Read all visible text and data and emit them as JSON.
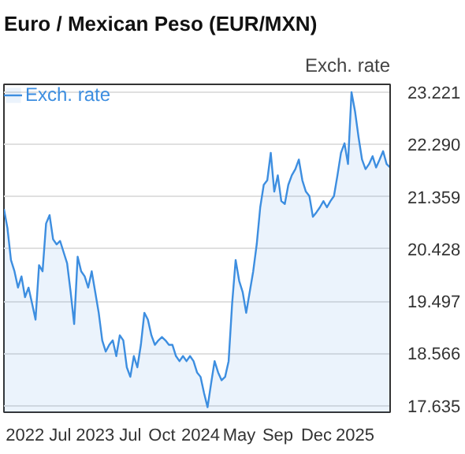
{
  "chart_data": {
    "type": "area",
    "title": "Euro / Mexican Peso (EUR/MXN)",
    "ylabel": "Exch. rate",
    "categories": [
      null,
      null,
      null,
      null,
      null,
      null,
      "2022",
      null,
      null,
      null,
      null,
      null,
      null,
      null,
      null,
      null,
      "Jul",
      null,
      null,
      null,
      null,
      null,
      null,
      null,
      null,
      null,
      "2023",
      null,
      null,
      null,
      null,
      null,
      null,
      null,
      null,
      null,
      "Jul",
      null,
      null,
      null,
      null,
      null,
      null,
      null,
      null,
      "Oct",
      null,
      null,
      null,
      null,
      null,
      null,
      null,
      null,
      null,
      null,
      "2024",
      null,
      null,
      null,
      null,
      null,
      null,
      null,
      null,
      null,
      null,
      "May",
      null,
      null,
      null,
      null,
      null,
      null,
      null,
      null,
      null,
      null,
      "Sep",
      null,
      null,
      null,
      null,
      null,
      null,
      null,
      null,
      null,
      null,
      "Dec",
      null,
      null,
      null,
      null,
      null,
      null,
      null,
      null,
      null,
      null,
      "2025",
      null,
      null,
      null,
      null,
      null,
      null,
      null,
      null,
      null,
      null
    ],
    "series": [
      {
        "name": "Exch. rate",
        "color": "#3d8ee0",
        "values": [
          21.14,
          20.8,
          20.23,
          20.03,
          19.74,
          19.94,
          19.57,
          19.74,
          19.46,
          19.17,
          20.14,
          20.03,
          20.88,
          21.03,
          20.6,
          20.51,
          20.57,
          20.37,
          20.17,
          19.66,
          19.09,
          20.29,
          20.03,
          19.94,
          19.74,
          20.03,
          19.66,
          19.29,
          18.8,
          18.6,
          18.72,
          18.8,
          18.52,
          18.89,
          18.8,
          18.32,
          18.15,
          18.52,
          18.32,
          18.72,
          19.29,
          19.17,
          18.89,
          18.72,
          18.8,
          18.86,
          18.8,
          18.72,
          18.72,
          18.52,
          18.43,
          18.52,
          18.43,
          18.52,
          18.43,
          18.23,
          18.15,
          17.86,
          17.61,
          18.03,
          18.43,
          18.23,
          18.09,
          18.15,
          18.43,
          19.46,
          20.23,
          19.86,
          19.66,
          19.29,
          19.66,
          20.03,
          20.51,
          21.17,
          21.57,
          21.65,
          22.14,
          21.45,
          21.74,
          21.28,
          21.23,
          21.57,
          21.74,
          21.85,
          22.02,
          21.65,
          21.45,
          21.37,
          21.0,
          21.08,
          21.17,
          21.28,
          21.17,
          21.28,
          21.37,
          21.74,
          22.14,
          22.31,
          21.94,
          23.22,
          22.88,
          22.42,
          22.02,
          21.85,
          21.94,
          22.08,
          21.88,
          22.02,
          22.17,
          21.94,
          21.88
        ]
      }
    ],
    "ylim": [
      17.52,
      23.36
    ],
    "yticks": [
      17.635,
      18.566,
      19.497,
      20.428,
      21.359,
      {
        "value": 22.29,
        "label": "22.290"
      },
      23.221
    ],
    "grid": "y",
    "legend": "top left"
  }
}
